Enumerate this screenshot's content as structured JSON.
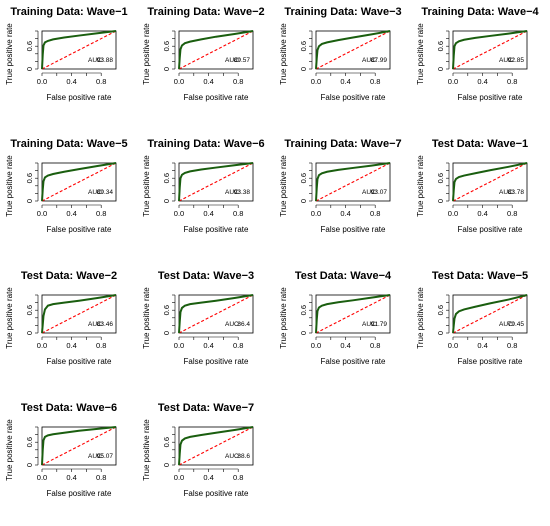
{
  "colors": {
    "roc": "#1a5e0f",
    "chance_line": "#ff0000",
    "axis": "#000000"
  },
  "chart_data": [
    {
      "type": "line",
      "title": "Training Data: Wave−1",
      "xlabel": "False positive rate",
      "ylabel": "True positive rate",
      "xlim": [
        0,
        1
      ],
      "ylim": [
        0,
        1
      ],
      "x_ticks": [
        "0.0",
        "0.4",
        "0.8"
      ],
      "y_ticks": [
        "0",
        "0.6"
      ],
      "auc_label": "AUC:",
      "auc_value": "93.88",
      "series": [
        {
          "x": [
            0,
            0.01,
            0.02,
            0.04,
            0.08,
            0.15,
            0.3,
            0.5,
            0.75,
            1
          ],
          "y": [
            0,
            0.38,
            0.62,
            0.7,
            0.74,
            0.78,
            0.83,
            0.88,
            0.94,
            1
          ]
        },
        {
          "x": [
            0,
            1
          ],
          "y": [
            0,
            1
          ]
        }
      ]
    },
    {
      "type": "line",
      "title": "Training Data: Wave−2",
      "xlabel": "False positive rate",
      "ylabel": "True positive rate",
      "xlim": [
        0,
        1
      ],
      "ylim": [
        0,
        1
      ],
      "x_ticks": [
        "0.0",
        "0.4",
        "0.8"
      ],
      "y_ticks": [
        "0",
        "0.6"
      ],
      "auc_label": "AUC:",
      "auc_value": "89.57",
      "series": [
        {
          "x": [
            0,
            0.01,
            0.02,
            0.04,
            0.08,
            0.15,
            0.3,
            0.5,
            0.75,
            1
          ],
          "y": [
            0,
            0.3,
            0.52,
            0.62,
            0.68,
            0.72,
            0.78,
            0.85,
            0.92,
            1
          ]
        },
        {
          "x": [
            0,
            1
          ],
          "y": [
            0,
            1
          ]
        }
      ]
    },
    {
      "type": "line",
      "title": "Training Data: Wave−3",
      "xlabel": "False positive rate",
      "ylabel": "True positive rate",
      "xlim": [
        0,
        1
      ],
      "ylim": [
        0,
        1
      ],
      "x_ticks": [
        "0.0",
        "0.4",
        "0.8"
      ],
      "y_ticks": [
        "0",
        "0.6"
      ],
      "auc_label": "AUC:",
      "auc_value": "87.99",
      "series": [
        {
          "x": [
            0,
            0.01,
            0.02,
            0.04,
            0.08,
            0.15,
            0.3,
            0.5,
            0.75,
            1
          ],
          "y": [
            0,
            0.28,
            0.5,
            0.6,
            0.66,
            0.7,
            0.76,
            0.83,
            0.91,
            1
          ]
        },
        {
          "x": [
            0,
            1
          ],
          "y": [
            0,
            1
          ]
        }
      ]
    },
    {
      "type": "line",
      "title": "Training Data: Wave−4",
      "xlabel": "False positive rate",
      "ylabel": "True positive rate",
      "xlim": [
        0,
        1
      ],
      "ylim": [
        0,
        1
      ],
      "x_ticks": [
        "0.0",
        "0.4",
        "0.8"
      ],
      "y_ticks": [
        "0",
        "0.6"
      ],
      "auc_label": "AUC:",
      "auc_value": "92.85",
      "series": [
        {
          "x": [
            0,
            0.01,
            0.02,
            0.04,
            0.08,
            0.15,
            0.3,
            0.5,
            0.75,
            1
          ],
          "y": [
            0,
            0.35,
            0.6,
            0.68,
            0.73,
            0.77,
            0.82,
            0.87,
            0.93,
            1
          ]
        },
        {
          "x": [
            0,
            1
          ],
          "y": [
            0,
            1
          ]
        }
      ]
    },
    {
      "type": "line",
      "title": "Training Data: Wave−5",
      "xlabel": "False positive rate",
      "ylabel": "True positive rate",
      "xlim": [
        0,
        1
      ],
      "ylim": [
        0,
        1
      ],
      "x_ticks": [
        "0.0",
        "0.4",
        "0.8"
      ],
      "y_ticks": [
        "0",
        "0.6"
      ],
      "auc_label": "AUC:",
      "auc_value": "89.34",
      "series": [
        {
          "x": [
            0,
            0.01,
            0.02,
            0.04,
            0.08,
            0.15,
            0.3,
            0.5,
            0.75,
            1
          ],
          "y": [
            0,
            0.3,
            0.52,
            0.62,
            0.67,
            0.71,
            0.77,
            0.84,
            0.92,
            1
          ]
        },
        {
          "x": [
            0,
            1
          ],
          "y": [
            0,
            1
          ]
        }
      ]
    },
    {
      "type": "line",
      "title": "Training Data: Wave−6",
      "xlabel": "False positive rate",
      "ylabel": "True positive rate",
      "xlim": [
        0,
        1
      ],
      "ylim": [
        0,
        1
      ],
      "x_ticks": [
        "0.0",
        "0.4",
        "0.8"
      ],
      "y_ticks": [
        "0",
        "0.6"
      ],
      "auc_label": "AUC:",
      "auc_value": "93.38",
      "series": [
        {
          "x": [
            0,
            0.01,
            0.02,
            0.04,
            0.08,
            0.15,
            0.3,
            0.5,
            0.75,
            1
          ],
          "y": [
            0,
            0.36,
            0.6,
            0.69,
            0.74,
            0.78,
            0.83,
            0.88,
            0.94,
            1
          ]
        },
        {
          "x": [
            0,
            1
          ],
          "y": [
            0,
            1
          ]
        }
      ]
    },
    {
      "type": "line",
      "title": "Training Data: Wave−7",
      "xlabel": "False positive rate",
      "ylabel": "True positive rate",
      "xlim": [
        0,
        1
      ],
      "ylim": [
        0,
        1
      ],
      "x_ticks": [
        "0.0",
        "0.4",
        "0.8"
      ],
      "y_ticks": [
        "0",
        "0.6"
      ],
      "auc_label": "AUC:",
      "auc_value": "93.07",
      "series": [
        {
          "x": [
            0,
            0.01,
            0.02,
            0.04,
            0.08,
            0.15,
            0.3,
            0.5,
            0.75,
            1
          ],
          "y": [
            0,
            0.34,
            0.58,
            0.68,
            0.73,
            0.77,
            0.82,
            0.87,
            0.93,
            1
          ]
        },
        {
          "x": [
            0,
            1
          ],
          "y": [
            0,
            1
          ]
        }
      ]
    },
    {
      "type": "line",
      "title": "Test Data: Wave−1",
      "xlabel": "False positive rate",
      "ylabel": "True positive rate",
      "xlim": [
        0,
        1
      ],
      "ylim": [
        0,
        1
      ],
      "x_ticks": [
        "0.0",
        "0.4",
        "0.8"
      ],
      "y_ticks": [
        "0",
        "0.6"
      ],
      "auc_label": "AUC:",
      "auc_value": "83.78",
      "series": [
        {
          "x": [
            0,
            0.01,
            0.02,
            0.04,
            0.08,
            0.15,
            0.3,
            0.5,
            0.75,
            1
          ],
          "y": [
            0,
            0.28,
            0.5,
            0.58,
            0.63,
            0.67,
            0.73,
            0.81,
            0.9,
            1
          ]
        },
        {
          "x": [
            0,
            1
          ],
          "y": [
            0,
            1
          ]
        }
      ]
    },
    {
      "type": "line",
      "title": "Test Data: Wave−2",
      "xlabel": "False positive rate",
      "ylabel": "True positive rate",
      "xlim": [
        0,
        1
      ],
      "ylim": [
        0,
        1
      ],
      "x_ticks": [
        "0.0",
        "0.4",
        "0.8"
      ],
      "y_ticks": [
        "0",
        "0.6"
      ],
      "auc_label": "AUC:",
      "auc_value": "83.46",
      "series": [
        {
          "x": [
            0,
            0.01,
            0.02,
            0.04,
            0.08,
            0.15,
            0.3,
            0.5,
            0.75,
            1
          ],
          "y": [
            0,
            0.22,
            0.45,
            0.62,
            0.72,
            0.76,
            0.8,
            0.85,
            0.92,
            1
          ]
        },
        {
          "x": [
            0,
            1
          ],
          "y": [
            0,
            1
          ]
        }
      ]
    },
    {
      "type": "line",
      "title": "Test Data: Wave−3",
      "xlabel": "False positive rate",
      "ylabel": "True positive rate",
      "xlim": [
        0,
        1
      ],
      "ylim": [
        0,
        1
      ],
      "x_ticks": [
        "0.0",
        "0.4",
        "0.8"
      ],
      "y_ticks": [
        "0",
        "0.6"
      ],
      "auc_label": "AUC:",
      "auc_value": "86.4",
      "series": [
        {
          "x": [
            0,
            0.01,
            0.02,
            0.04,
            0.08,
            0.15,
            0.3,
            0.5,
            0.75,
            1
          ],
          "y": [
            0,
            0.3,
            0.55,
            0.66,
            0.72,
            0.76,
            0.8,
            0.85,
            0.92,
            1
          ]
        },
        {
          "x": [
            0,
            1
          ],
          "y": [
            0,
            1
          ]
        }
      ]
    },
    {
      "type": "line",
      "title": "Test Data: Wave−4",
      "xlabel": "False positive rate",
      "ylabel": "True positive rate",
      "xlim": [
        0,
        1
      ],
      "ylim": [
        0,
        1
      ],
      "x_ticks": [
        "0.0",
        "0.4",
        "0.8"
      ],
      "y_ticks": [
        "0",
        "0.6"
      ],
      "auc_label": "AUC:",
      "auc_value": "91.79",
      "series": [
        {
          "x": [
            0,
            0.01,
            0.02,
            0.04,
            0.08,
            0.15,
            0.3,
            0.5,
            0.75,
            1
          ],
          "y": [
            0,
            0.35,
            0.58,
            0.67,
            0.72,
            0.76,
            0.81,
            0.86,
            0.93,
            1
          ]
        },
        {
          "x": [
            0,
            1
          ],
          "y": [
            0,
            1
          ]
        }
      ]
    },
    {
      "type": "line",
      "title": "Test Data: Wave−5",
      "xlabel": "False positive rate",
      "ylabel": "True positive rate",
      "xlim": [
        0,
        1
      ],
      "ylim": [
        0,
        1
      ],
      "x_ticks": [
        "0.0",
        "0.4",
        "0.8"
      ],
      "y_ticks": [
        "0",
        "0.6"
      ],
      "auc_label": "AUC:",
      "auc_value": "79.45",
      "series": [
        {
          "x": [
            0,
            0.01,
            0.02,
            0.04,
            0.08,
            0.15,
            0.3,
            0.5,
            0.75,
            1
          ],
          "y": [
            0,
            0.2,
            0.38,
            0.5,
            0.57,
            0.62,
            0.69,
            0.78,
            0.88,
            1
          ]
        },
        {
          "x": [
            0,
            1
          ],
          "y": [
            0,
            1
          ]
        }
      ]
    },
    {
      "type": "line",
      "title": "Test Data: Wave−6",
      "xlabel": "False positive rate",
      "ylabel": "True positive rate",
      "xlim": [
        0,
        1
      ],
      "ylim": [
        0,
        1
      ],
      "x_ticks": [
        "0.0",
        "0.4",
        "0.8"
      ],
      "y_ticks": [
        "0",
        "0.6"
      ],
      "auc_label": "AUC:",
      "auc_value": "95.07",
      "series": [
        {
          "x": [
            0,
            0.01,
            0.02,
            0.04,
            0.08,
            0.15,
            0.3,
            0.5,
            0.75,
            1
          ],
          "y": [
            0,
            0.4,
            0.65,
            0.74,
            0.78,
            0.81,
            0.85,
            0.9,
            0.95,
            1
          ]
        },
        {
          "x": [
            0,
            1
          ],
          "y": [
            0,
            1
          ]
        }
      ]
    },
    {
      "type": "line",
      "title": "Test Data: Wave−7",
      "xlabel": "False positive rate",
      "ylabel": "True positive rate",
      "xlim": [
        0,
        1
      ],
      "ylim": [
        0,
        1
      ],
      "x_ticks": [
        "0.0",
        "0.4",
        "0.8"
      ],
      "y_ticks": [
        "0",
        "0.6"
      ],
      "auc_label": "AUC:",
      "auc_value": "88.6",
      "series": [
        {
          "x": [
            0,
            0.01,
            0.02,
            0.04,
            0.08,
            0.15,
            0.3,
            0.5,
            0.75,
            1
          ],
          "y": [
            0,
            0.3,
            0.54,
            0.64,
            0.7,
            0.74,
            0.79,
            0.85,
            0.92,
            1
          ]
        },
        {
          "x": [
            0,
            1
          ],
          "y": [
            0,
            1
          ]
        }
      ]
    }
  ]
}
